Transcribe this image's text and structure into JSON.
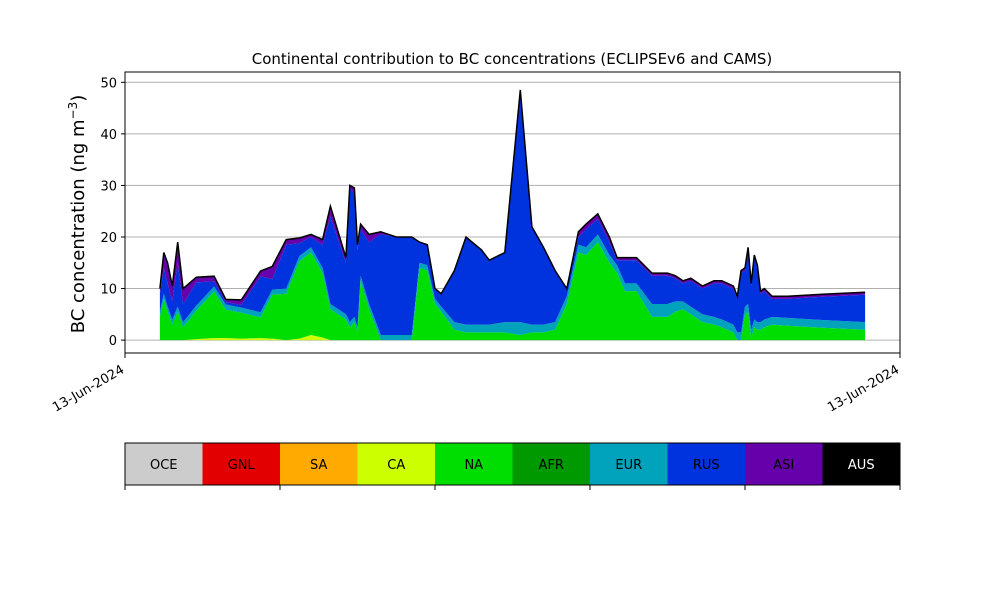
{
  "chart_data": {
    "type": "area",
    "stacked": true,
    "title": "Continental contribution to BC concentrations (ECLIPSEv6 and CAMS)",
    "ylabel_main": "BC concentration (ng m",
    "ylabel_exp": "−3",
    "ylabel_close": ")",
    "xlabel": "",
    "ylim": [
      -2.5,
      52
    ],
    "xlim": [
      0,
      100
    ],
    "yticks": [
      0,
      10,
      20,
      30,
      40,
      50
    ],
    "xticks": [
      {
        "x": 0,
        "label": "13-Jun-2024"
      },
      {
        "x": 100,
        "label": "13-Jun-2024"
      }
    ],
    "grid": "horizontal",
    "x": [
      4.5,
      5.0,
      5.5,
      6.1,
      6.8,
      7.5,
      9.2,
      11.5,
      13.0,
      15.0,
      17.5,
      19.0,
      20.8,
      22.5,
      24.0,
      25.5,
      26.5,
      28.5,
      29.0,
      29.6,
      30.0,
      30.4,
      31.5,
      33.0,
      35.0,
      37.0,
      38.0,
      39.0,
      40.0,
      40.8,
      42.5,
      44.0,
      46.0,
      47.0,
      49.0,
      51.0,
      52.5,
      54.0,
      55.5,
      57.0,
      58.5,
      59.5,
      61.0,
      62.5,
      63.5,
      64.5,
      66.0,
      68.0,
      70.0,
      71.0,
      72.0,
      73.0,
      74.5,
      76.0,
      77.0,
      78.5,
      79.0,
      79.5,
      80.0,
      80.4,
      80.8,
      81.2,
      81.6,
      82.0,
      82.5,
      83.5,
      85.5,
      90.0,
      95.5
    ],
    "series": [
      {
        "name": "OCE",
        "color": "#cccccc",
        "values": [
          0,
          0,
          0,
          0,
          0,
          0,
          0,
          0,
          0,
          0,
          0,
          0,
          0,
          0,
          0,
          0,
          0,
          0,
          0,
          0,
          0,
          0,
          0,
          0,
          0,
          0,
          0,
          0,
          0,
          0,
          0,
          0,
          0,
          0,
          0,
          0,
          0,
          0,
          0,
          0,
          0,
          0,
          0,
          0,
          0,
          0,
          0,
          0,
          0,
          0,
          0,
          0,
          0,
          0,
          0,
          0,
          0,
          0,
          0,
          0,
          0,
          0,
          0,
          0,
          0,
          0,
          0,
          0,
          0
        ]
      },
      {
        "name": "GNL",
        "color": "#e30000",
        "values": [
          0,
          0,
          0,
          0,
          0,
          0,
          0,
          0,
          0,
          0,
          0,
          0,
          0,
          0,
          0,
          0,
          0,
          0,
          0,
          0,
          0,
          0,
          0,
          0,
          0,
          0,
          0,
          0,
          0,
          0,
          0,
          0,
          0,
          0,
          0,
          0,
          0,
          0,
          0,
          0,
          0,
          0,
          0,
          0,
          0,
          0,
          0,
          0,
          0,
          0,
          0,
          0,
          0,
          0,
          0,
          0,
          0,
          0,
          0,
          0,
          0,
          0,
          0,
          0,
          0,
          0,
          0,
          0,
          0
        ]
      },
      {
        "name": "SA",
        "color": "#ffaa00",
        "values": [
          0,
          0,
          0,
          0,
          0,
          0,
          0,
          0,
          0,
          0,
          0,
          0,
          0,
          0,
          0,
          0,
          0,
          0,
          0,
          0,
          0,
          0,
          0,
          0,
          0,
          0,
          0,
          0,
          0,
          0,
          0,
          0,
          0,
          0,
          0,
          0,
          0,
          0,
          0,
          0,
          0,
          0,
          0,
          0,
          0,
          0,
          0,
          0,
          0,
          0,
          0,
          0,
          0,
          0,
          0,
          0,
          0,
          0,
          0,
          0,
          0,
          0,
          0,
          0,
          0,
          0,
          0,
          0,
          0
        ]
      },
      {
        "name": "CA",
        "color": "#ccff00",
        "values": [
          0,
          0,
          0,
          0,
          0,
          0,
          0.2,
          0.4,
          0.4,
          0.3,
          0.4,
          0.3,
          0,
          0.3,
          1.0,
          0.5,
          0,
          0,
          0,
          0,
          0,
          0,
          0,
          0,
          0,
          0,
          0,
          0,
          0,
          0,
          0,
          0,
          0,
          0,
          0,
          0,
          0,
          0,
          0,
          0,
          0,
          0,
          0,
          0,
          0,
          0,
          0,
          0,
          0,
          0,
          0,
          0,
          0,
          0,
          0,
          0,
          0,
          0,
          0,
          0,
          0,
          0,
          0,
          0,
          0,
          0,
          0,
          0,
          0
        ]
      },
      {
        "name": "NA",
        "color": "#00dd00",
        "values": [
          4.5,
          8.0,
          5.5,
          3.0,
          5.5,
          2.5,
          5.5,
          9.0,
          5.5,
          5.0,
          4.0,
          8.5,
          9.0,
          15.0,
          16.0,
          12.5,
          6.0,
          4.0,
          2.5,
          3.5,
          1.5,
          11.5,
          6.0,
          0,
          0,
          0,
          14.0,
          13.5,
          7.0,
          5.5,
          2.0,
          1.5,
          1.5,
          1.5,
          1.5,
          1.0,
          1.5,
          1.5,
          2.0,
          7.0,
          17.0,
          16.5,
          19.0,
          15.0,
          13.0,
          9.5,
          9.5,
          4.5,
          4.5,
          5.5,
          6.0,
          5.0,
          3.5,
          3.0,
          2.5,
          1.5,
          0,
          0,
          5.0,
          5.5,
          0.5,
          2.5,
          2.0,
          2.0,
          2.5,
          3.0,
          2.8,
          2.4,
          2.0
        ]
      },
      {
        "name": "AFR",
        "color": "#009900",
        "values": [
          0,
          0,
          0,
          0,
          0,
          0,
          0,
          0,
          0,
          0,
          0,
          0,
          0,
          0,
          0,
          0,
          0,
          0,
          0,
          0,
          0,
          0,
          0,
          0,
          0,
          0,
          0,
          0,
          0,
          0,
          0,
          0,
          0,
          0,
          0,
          0,
          0,
          0,
          0,
          0,
          0,
          0,
          0,
          0,
          0,
          0,
          0,
          0,
          0,
          0,
          0,
          0,
          0,
          0,
          0,
          0,
          0,
          0,
          0,
          0,
          0,
          0,
          0,
          0,
          0,
          0,
          0,
          0,
          0
        ]
      },
      {
        "name": "EUR",
        "color": "#00a3bb",
        "values": [
          1.0,
          1.0,
          1.0,
          1.0,
          1.0,
          1.0,
          1.0,
          1.0,
          1.0,
          1.0,
          1.0,
          1.0,
          1.0,
          1.0,
          1.0,
          1.0,
          1.0,
          1.0,
          1.0,
          1.0,
          1.0,
          1.0,
          1.0,
          1.0,
          1.0,
          1.0,
          1.0,
          1.0,
          1.0,
          1.0,
          1.5,
          1.5,
          1.5,
          1.5,
          2.0,
          2.5,
          1.5,
          1.5,
          1.5,
          1.5,
          1.5,
          1.5,
          1.5,
          1.5,
          1.5,
          1.5,
          1.5,
          2.5,
          2.5,
          2.0,
          1.5,
          1.5,
          1.5,
          1.5,
          1.5,
          1.5,
          1.5,
          1.5,
          1.5,
          1.5,
          1.5,
          1.5,
          1.5,
          1.5,
          1.5,
          1.5,
          1.5,
          1.5,
          1.5
        ]
      },
      {
        "name": "RUS",
        "color": "#0033dd",
        "values": [
          3.5,
          5.0,
          4.5,
          3.5,
          8.5,
          3.5,
          4.5,
          1.0,
          0.5,
          0.5,
          7.0,
          2.0,
          8.5,
          2.5,
          2.0,
          4.5,
          17.0,
          10.0,
          26.0,
          24.0,
          15.0,
          9.0,
          12.0,
          19.5,
          19.0,
          19.0,
          4.0,
          4.0,
          2.0,
          2.5,
          10.0,
          17.0,
          14.5,
          12.5,
          13.5,
          45.0,
          19.0,
          15.0,
          10.0,
          1.5,
          1.5,
          3.5,
          3.0,
          2.5,
          1.0,
          4.5,
          4.5,
          5.5,
          5.5,
          4.5,
          3.5,
          5.0,
          5.0,
          6.5,
          7.0,
          7.0,
          6.5,
          11.5,
          7.0,
          10.5,
          8.5,
          12.0,
          10.5,
          5.5,
          5.5,
          3.5,
          3.7,
          4.5,
          5.3
        ]
      },
      {
        "name": "ASI",
        "color": "#6600aa",
        "values": [
          1.0,
          3.0,
          4.0,
          3.0,
          4.0,
          3.0,
          1.0,
          1.0,
          0.5,
          1.0,
          1.0,
          2.5,
          1.0,
          1.0,
          0.5,
          1.0,
          2.0,
          1.0,
          0.5,
          1.0,
          1.0,
          1.0,
          1.5,
          0.5,
          0,
          0,
          0,
          0,
          0,
          0,
          0,
          0,
          0,
          0,
          0,
          0,
          0,
          0,
          0,
          0,
          1.0,
          1.0,
          1.0,
          1.0,
          0.5,
          0.5,
          0.5,
          0.5,
          0.5,
          0.5,
          0.5,
          0.5,
          0.5,
          0.5,
          0.5,
          0.5,
          0.5,
          0.5,
          0.5,
          0.5,
          0.5,
          0.5,
          0.5,
          0.5,
          0.5,
          0.5,
          0.5,
          0.5,
          0.5
        ]
      },
      {
        "name": "AUS",
        "color": "#000000",
        "values": [
          0,
          0,
          0,
          0,
          0,
          0,
          0,
          0,
          0,
          0,
          0,
          0,
          0,
          0,
          0,
          0,
          0,
          0,
          0,
          0,
          0,
          0,
          0,
          0,
          0,
          0,
          0,
          0,
          0,
          0,
          0,
          0,
          0,
          0,
          0,
          0,
          0,
          0,
          0,
          0,
          0,
          0,
          0,
          0,
          0,
          0,
          0,
          0,
          0,
          0,
          0,
          0,
          0,
          0,
          0,
          0,
          0,
          0,
          0,
          0,
          0,
          0,
          0,
          0,
          0,
          0,
          0,
          0,
          0
        ]
      }
    ],
    "legend": {
      "placement": "bottom",
      "entries": [
        {
          "label": "OCE",
          "color": "#cccccc",
          "text_color": "#000000"
        },
        {
          "label": "GNL",
          "color": "#e30000",
          "text_color": "#000000"
        },
        {
          "label": "SA",
          "color": "#ffaa00",
          "text_color": "#000000"
        },
        {
          "label": "CA",
          "color": "#ccff00",
          "text_color": "#000000"
        },
        {
          "label": "NA",
          "color": "#00dd00",
          "text_color": "#000000"
        },
        {
          "label": "AFR",
          "color": "#009900",
          "text_color": "#000000"
        },
        {
          "label": "EUR",
          "color": "#00a3bb",
          "text_color": "#000000"
        },
        {
          "label": "RUS",
          "color": "#0033dd",
          "text_color": "#000000"
        },
        {
          "label": "ASI",
          "color": "#6600aa",
          "text_color": "#000000"
        },
        {
          "label": "AUS",
          "color": "#000000",
          "text_color": "#ffffff"
        }
      ]
    }
  }
}
